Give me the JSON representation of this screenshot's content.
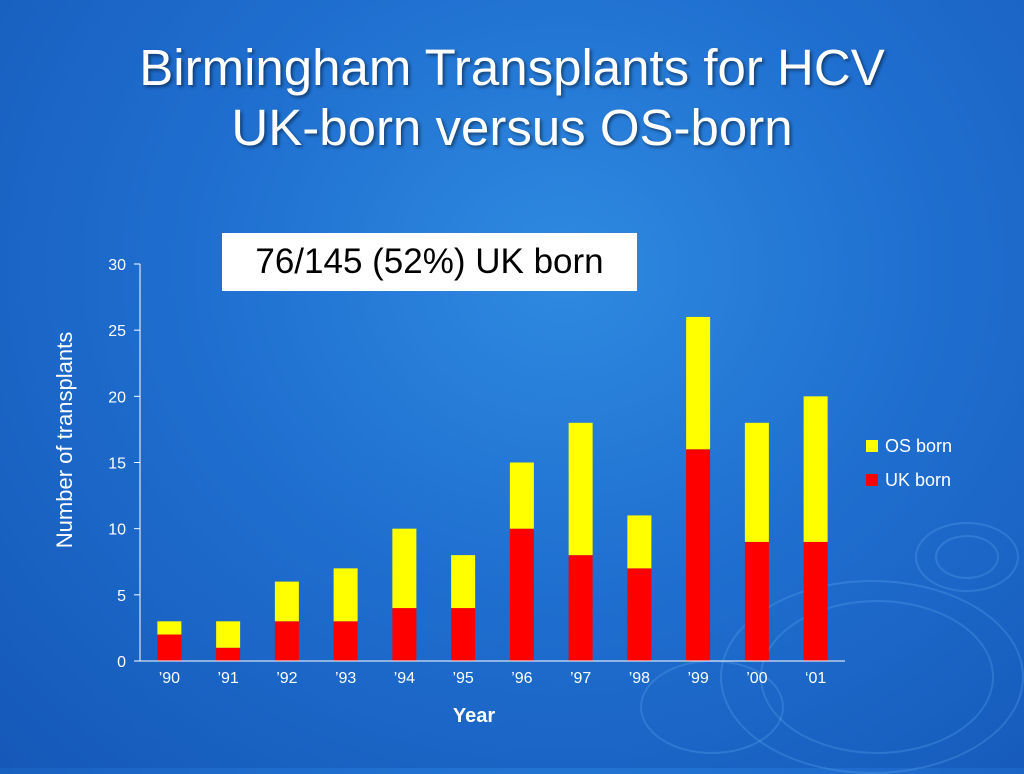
{
  "slide": {
    "title_line1": "Birmingham Transplants for HCV",
    "title_line2": "UK-born versus OS-born",
    "callout": "76/145 (52%) UK born"
  },
  "chart_data": {
    "type": "bar",
    "stacked": true,
    "categories": [
      "’90",
      "’91",
      "’92",
      "’93",
      "’94",
      "’95",
      "’96",
      "’97",
      "’98",
      "’99",
      "’00",
      "‘01"
    ],
    "series": [
      {
        "name": "UK born",
        "color": "#ff0000",
        "values": [
          2,
          1,
          3,
          3,
          4,
          4,
          10,
          8,
          7,
          16,
          9,
          9
        ]
      },
      {
        "name": "OS born",
        "color": "#ffff00",
        "values": [
          1,
          2,
          3,
          4,
          6,
          4,
          5,
          10,
          4,
          10,
          9,
          11
        ]
      }
    ],
    "legend_order": [
      "OS born",
      "UK born"
    ],
    "legend_position": "right",
    "xlabel": "Year",
    "ylabel": "Number of transplants",
    "ylim": [
      0,
      30
    ],
    "yticks": [
      0,
      5,
      10,
      15,
      20,
      25,
      30
    ],
    "grid": false
  }
}
